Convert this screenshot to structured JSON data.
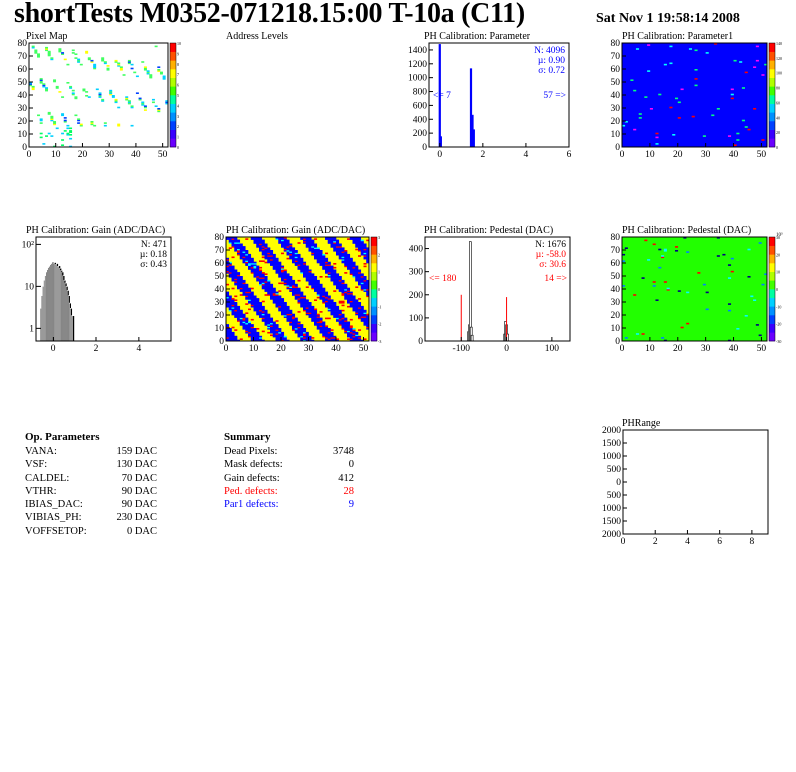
{
  "header": {
    "title": "shortTests M0352-071218.15:00 T-10a (C11)",
    "datetime": "Sat Nov  1 19:58:14 2008"
  },
  "chart_data": [
    {
      "id": "pixel-map",
      "type": "heatmap",
      "title": "Pixel Map",
      "xlim": [
        0,
        52
      ],
      "ylim": [
        0,
        80
      ],
      "xticks": [
        "0",
        "10",
        "20",
        "30",
        "40",
        "50"
      ],
      "yticks": [
        "0",
        "10",
        "20",
        "30",
        "40",
        "50",
        "60",
        "70",
        "80"
      ],
      "zticks": [
        "0",
        "1",
        "2",
        "3",
        "4",
        "5",
        "6",
        "7",
        "8",
        "9",
        "10"
      ]
    },
    {
      "id": "address-levels",
      "type": "bar",
      "title": "Address Levels"
    },
    {
      "id": "ph-param",
      "type": "bar",
      "title": "PH Calibration: Parameter",
      "xlim": [
        -0.5,
        6
      ],
      "ylim": [
        0,
        1500
      ],
      "xticks": [
        "0",
        "2",
        "4",
        "6"
      ],
      "yticks": [
        "0",
        "200",
        "400",
        "600",
        "800",
        "1000",
        "1200",
        "1400"
      ],
      "bars": [
        {
          "x": 0.0,
          "y": 1480
        },
        {
          "x": 0.05,
          "y": 150
        },
        {
          "x": 1.45,
          "y": 1130
        },
        {
          "x": 1.52,
          "y": 460
        },
        {
          "x": 1.58,
          "y": 250
        }
      ],
      "stats": [
        "N: 4096",
        "µ: 0.90",
        "σ: 0.72"
      ],
      "under": "<= 7",
      "over": "57 =>"
    },
    {
      "id": "ph-param1",
      "type": "heatmap",
      "title": "PH Calibration: Parameter1",
      "xlim": [
        0,
        52
      ],
      "ylim": [
        0,
        80
      ],
      "xticks": [
        "0",
        "10",
        "20",
        "30",
        "40",
        "50"
      ],
      "yticks": [
        "0",
        "10",
        "20",
        "30",
        "40",
        "50",
        "60",
        "70",
        "80"
      ],
      "zticks": [
        "0",
        "20",
        "40",
        "60",
        "80",
        "100",
        "120",
        "140"
      ]
    },
    {
      "id": "gain-hist",
      "type": "bar",
      "title": "PH Calibration: Gain (ADC/DAC)",
      "log_y": true,
      "xlim": [
        -0.8,
        5.5
      ],
      "ylim": [
        0.5,
        150
      ],
      "xticks": [
        "0",
        "2",
        "4"
      ],
      "yticks": [
        "1",
        "10",
        "10²"
      ],
      "bars": [
        {
          "x": -0.55,
          "y": 3
        },
        {
          "x": -0.5,
          "y": 6
        },
        {
          "x": -0.45,
          "y": 10
        },
        {
          "x": -0.4,
          "y": 14
        },
        {
          "x": -0.35,
          "y": 18
        },
        {
          "x": -0.3,
          "y": 22
        },
        {
          "x": -0.25,
          "y": 25
        },
        {
          "x": -0.2,
          "y": 28
        },
        {
          "x": -0.15,
          "y": 30
        },
        {
          "x": -0.1,
          "y": 33
        },
        {
          "x": -0.05,
          "y": 35
        },
        {
          "x": 0.0,
          "y": 38
        },
        {
          "x": 0.05,
          "y": 36
        },
        {
          "x": 0.1,
          "y": 37
        },
        {
          "x": 0.15,
          "y": 33
        },
        {
          "x": 0.2,
          "y": 35
        },
        {
          "x": 0.25,
          "y": 30
        },
        {
          "x": 0.3,
          "y": 31
        },
        {
          "x": 0.35,
          "y": 27
        },
        {
          "x": 0.4,
          "y": 24
        },
        {
          "x": 0.45,
          "y": 22
        },
        {
          "x": 0.5,
          "y": 18
        },
        {
          "x": 0.55,
          "y": 14
        },
        {
          "x": 0.6,
          "y": 12
        },
        {
          "x": 0.65,
          "y": 10
        },
        {
          "x": 0.7,
          "y": 8
        },
        {
          "x": 0.75,
          "y": 6
        },
        {
          "x": 0.8,
          "y": 4
        },
        {
          "x": 0.85,
          "y": 3
        },
        {
          "x": 0.9,
          "y": 2
        },
        {
          "x": 0.95,
          "y": 2
        }
      ],
      "stats": [
        "N:  471",
        "µ: 0.18",
        "σ: 0.43"
      ]
    },
    {
      "id": "gain-map",
      "type": "heatmap",
      "title": "PH Calibration: Gain (ADC/DAC)",
      "xlim": [
        0,
        52
      ],
      "ylim": [
        0,
        80
      ],
      "xticks": [
        "0",
        "10",
        "20",
        "30",
        "40",
        "50"
      ],
      "yticks": [
        "0",
        "10",
        "20",
        "30",
        "40",
        "50",
        "60",
        "70",
        "80"
      ],
      "zticks": [
        "-3",
        "-2",
        "-1",
        "0",
        "1",
        "2",
        "3"
      ]
    },
    {
      "id": "pedestal-hist",
      "type": "bar",
      "title": "PH Calibration: Pedestal (DAC)",
      "xlim": [
        -180,
        140
      ],
      "ylim": [
        0,
        450
      ],
      "xticks": [
        "-100",
        "0",
        "100"
      ],
      "yticks": [
        "0",
        "100",
        "200",
        "300",
        "400"
      ],
      "bars": [
        {
          "x": -84,
          "y": 40
        },
        {
          "x": -82,
          "y": 70
        },
        {
          "x": -80,
          "y": 430
        },
        {
          "x": -78,
          "y": 60
        },
        {
          "x": -76,
          "y": 25
        },
        {
          "x": -4,
          "y": 30
        },
        {
          "x": -2,
          "y": 85
        },
        {
          "x": 0,
          "y": 70
        },
        {
          "x": 2,
          "y": 30
        }
      ],
      "fit_bars": [
        {
          "x": -100,
          "y": 200
        },
        {
          "x": 0,
          "y": 190
        }
      ],
      "stats": [
        "N: 1676",
        "µ: -58.0",
        "σ: 30.6"
      ],
      "under": "<= 180",
      "over": "14 =>"
    },
    {
      "id": "pedestal-map",
      "type": "heatmap",
      "title": "PH Calibration: Pedestal (DAC)",
      "xlim": [
        0,
        52
      ],
      "ylim": [
        0,
        80
      ],
      "xticks": [
        "0",
        "10",
        "20",
        "30",
        "40",
        "50"
      ],
      "yticks": [
        "0",
        "10",
        "20",
        "30",
        "40",
        "50",
        "60",
        "70",
        "80"
      ],
      "zticks": [
        "-30",
        "-20",
        "-10",
        "0",
        "10",
        "20",
        "30"
      ],
      "zexp": "10³"
    },
    {
      "id": "phrange",
      "type": "bar",
      "title": "PHRange",
      "xlim": [
        0,
        9
      ],
      "ylim": [
        -2000,
        2000
      ],
      "xticks": [
        "0",
        "2",
        "4",
        "6",
        "8"
      ],
      "yticks": [
        "2000",
        "1500",
        "1000",
        "500",
        "0",
        "500",
        "1000",
        "1500",
        "2000"
      ]
    }
  ],
  "op_params": {
    "title": "Op. Parameters",
    "rows": [
      {
        "k": "VANA:",
        "v": "159 DAC"
      },
      {
        "k": "VSF:",
        "v": "130 DAC"
      },
      {
        "k": "CALDEL:",
        "v": "70 DAC"
      },
      {
        "k": "VTHR:",
        "v": "90 DAC"
      },
      {
        "k": "IBIAS_DAC:",
        "v": "90 DAC"
      },
      {
        "k": "VIBIAS_PH:",
        "v": "230 DAC"
      },
      {
        "k": "VOFFSETOP:",
        "v": "0 DAC"
      }
    ]
  },
  "summary": {
    "title": "Summary",
    "rows": [
      {
        "k": "Dead Pixels:",
        "v": "3748",
        "color": "#000000"
      },
      {
        "k": "Mask defects:",
        "v": "0",
        "color": "#000000"
      },
      {
        "k": "Gain defects:",
        "v": "412",
        "color": "#000000"
      },
      {
        "k": "Ped. defects:",
        "v": "28",
        "color": "#ff0000"
      },
      {
        "k": "Par1 defects:",
        "v": "9",
        "color": "#0000ff"
      }
    ]
  }
}
